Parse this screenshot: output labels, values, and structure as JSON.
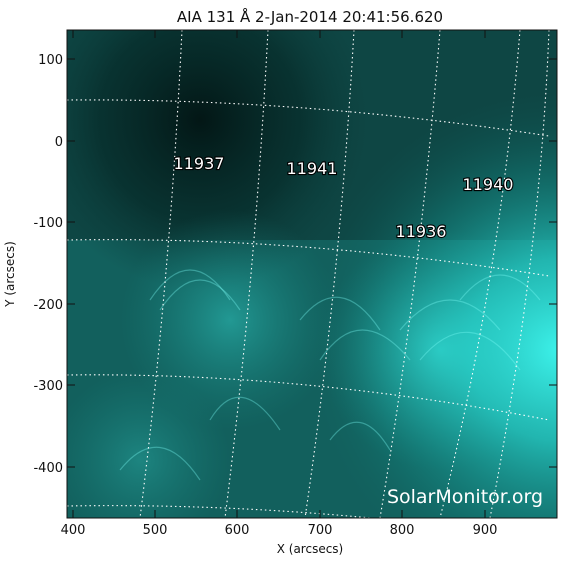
{
  "title": "AIA 131 Å   2-Jan-2014  20:41:56.620",
  "xlabel": "X (arcsecs)",
  "ylabel": "Y (arcsecs)",
  "xticks": [
    "400",
    "500",
    "600",
    "700",
    "800",
    "900"
  ],
  "yticks": [
    "100",
    "0",
    "-100",
    "-200",
    "-300",
    "-400"
  ],
  "regions": [
    "11937",
    "11941",
    "11940",
    "11936"
  ],
  "watermark": "SolarMonitor.org",
  "colors": {
    "background": "#0b3a38",
    "bright": "#2ef2ea",
    "mid": "#1a8f8a",
    "grid": "#ffffff"
  }
}
